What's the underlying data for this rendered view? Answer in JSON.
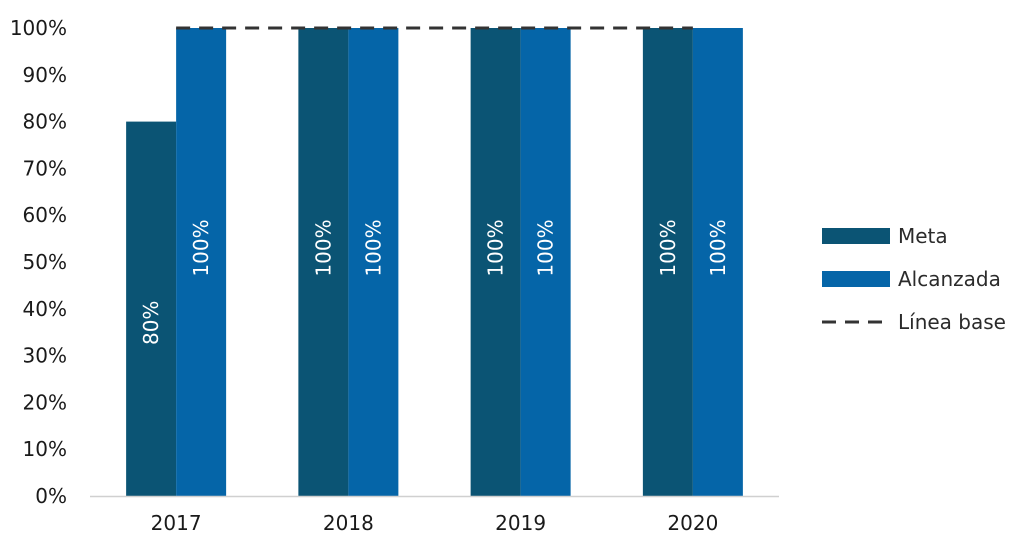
{
  "chart_data": {
    "type": "bar",
    "categories": [
      "2017",
      "2018",
      "2019",
      "2020"
    ],
    "series": [
      {
        "name": "Meta",
        "values": [
          80,
          100,
          100,
          100
        ],
        "color": "#0b5474",
        "data_labels": [
          "80%",
          "100%",
          "100%",
          "100%"
        ]
      },
      {
        "name": "Alcanzada",
        "values": [
          100,
          100,
          100,
          100
        ],
        "color": "#0565a8",
        "data_labels": [
          "100%",
          "100%",
          "100%",
          "100%"
        ]
      }
    ],
    "baseline": {
      "name": "Línea base",
      "value": 100,
      "style": "dashed",
      "color": "#333333"
    },
    "y_ticks": [
      "0%",
      "10%",
      "20%",
      "30%",
      "40%",
      "50%",
      "60%",
      "70%",
      "80%",
      "90%",
      "100%"
    ],
    "ylim": [
      0,
      100
    ],
    "title": "",
    "xlabel": "",
    "ylabel": "",
    "grid": false,
    "legend_position": "right"
  }
}
